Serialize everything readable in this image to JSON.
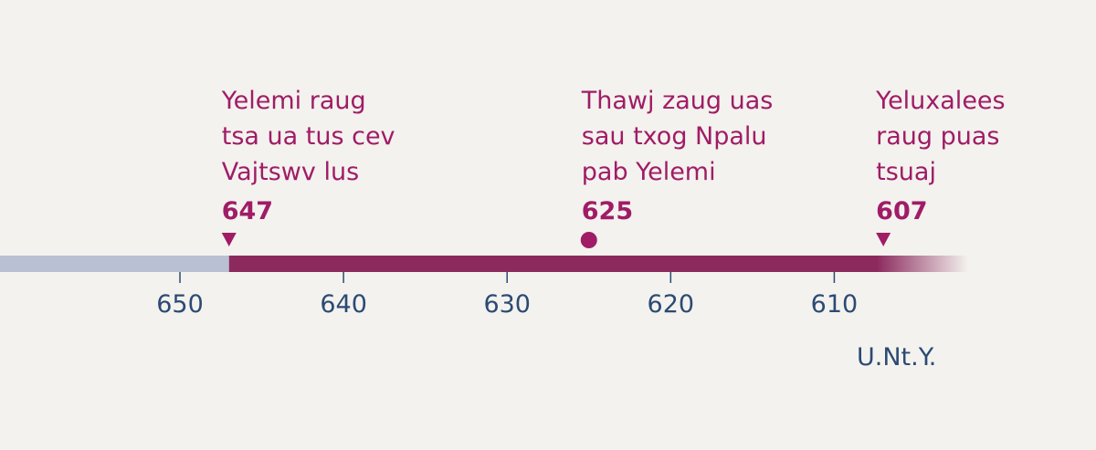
{
  "chart_data": {
    "type": "timeline",
    "xlim": [
      661,
      594
    ],
    "xticks": [
      650,
      640,
      630,
      620,
      610
    ],
    "x_label": "U.Nt.Y.",
    "events": [
      {
        "lines": [
          "Yelemi raug",
          "tsa ua tus cev",
          "Vajtswv lus"
        ],
        "x": 647,
        "marker": "triangle"
      },
      {
        "lines": [
          "Thawj zaug uas",
          "sau txog Npalu",
          "pab Yelemi"
        ],
        "x": 625,
        "marker": "circle"
      },
      {
        "lines": [
          "Yeluxalees",
          "raug puas",
          "tsuaj"
        ],
        "x": 607,
        "marker": "triangle"
      }
    ],
    "colors": {
      "before": "#b9c0d3",
      "after": "#8c2a5e",
      "event": "#a01c66",
      "axis": "#2c4a73"
    }
  }
}
